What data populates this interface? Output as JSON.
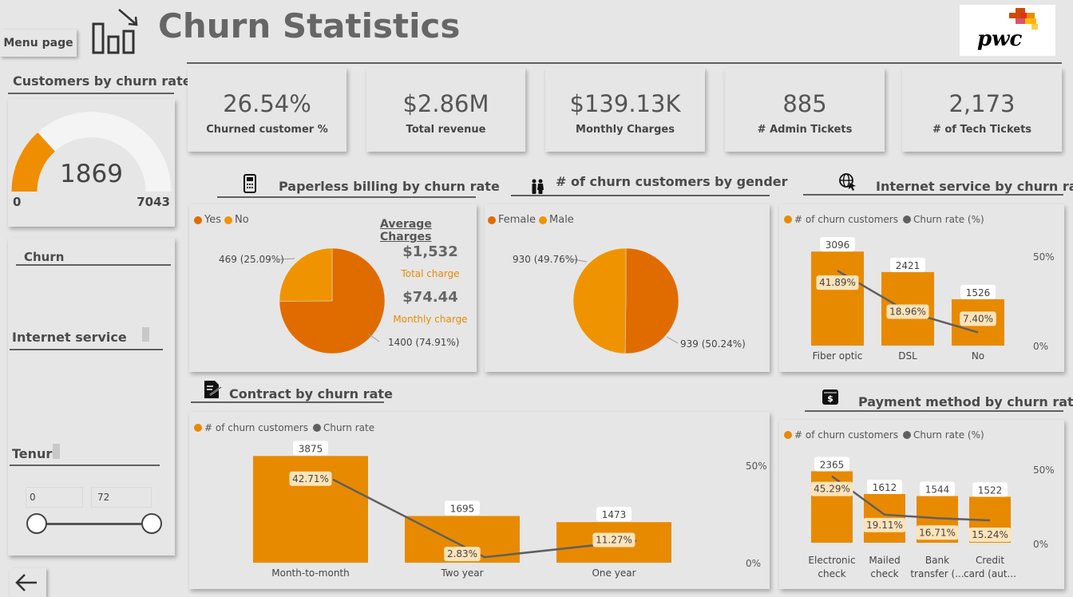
{
  "header": {
    "title": "Churn Statistics",
    "menu_button": "Menu page",
    "logo_text": "pwc"
  },
  "colors": {
    "orange": "#e88a00",
    "dark_orange": "#e06c00",
    "light_orange": "#ef9400",
    "line": "#5f5f5f"
  },
  "gauge": {
    "title": "Customers by churn rate",
    "value": "1869",
    "min": "0",
    "max": "7043",
    "fraction": 0.2654
  },
  "kpis": [
    {
      "value": "26.54%",
      "label": "Churned customer %"
    },
    {
      "value": "$2.86M",
      "label": "Total revenue"
    },
    {
      "value": "$139.13K",
      "label": "Monthly Charges"
    },
    {
      "value": "885",
      "label": "# Admin Tickets"
    },
    {
      "value": "2,173",
      "label": "#  of Tech Tickets"
    }
  ],
  "slicers": {
    "churn_label": "Churn",
    "internet_label": "Internet service",
    "tenure_label": "Tenur",
    "tenure_min": "0",
    "tenure_max": "72"
  },
  "paperless": {
    "title": "Paperless billing by churn rate",
    "legend": [
      "Yes",
      "No"
    ],
    "label_no": "469 (25.09%)",
    "label_yes": "1400 (74.91%)",
    "avg_title": "Average Charges",
    "total_value": "$1,532",
    "total_label": "Total charge",
    "monthly_value": "$74.44",
    "monthly_label": "Monthly charge"
  },
  "gender": {
    "title": "# of churn customers by gender",
    "legend": [
      "Female",
      "Male"
    ],
    "label_male": "930 (49.76%)",
    "label_female": "939 (50.24%)"
  },
  "internet_chart": {
    "title": "Internet service by churn rate",
    "legend": [
      "# of churn customers",
      "Churn rate (%)"
    ],
    "axis": [
      "50%",
      "0%"
    ]
  },
  "contract_chart": {
    "title": "Contract by churn rate",
    "legend": [
      "# of churn customers",
      "Churn rate"
    ],
    "axis": [
      "50%",
      "0%"
    ]
  },
  "payment_chart": {
    "title": "Payment method by churn rate",
    "legend": [
      "# of churn customers",
      "Churn rate (%)"
    ],
    "axis": [
      "50%",
      "0%"
    ]
  },
  "chart_data": [
    {
      "type": "pie",
      "title": "Paperless billing by churn rate",
      "categories": [
        "Yes",
        "No"
      ],
      "values": [
        1400,
        469
      ],
      "labels": [
        "1400 (74.91%)",
        "469 (25.09%)"
      ]
    },
    {
      "type": "pie",
      "title": "# of churn customers by gender",
      "categories": [
        "Female",
        "Male"
      ],
      "values": [
        939,
        930
      ],
      "labels": [
        "939 (50.24%)",
        "930 (49.76%)"
      ]
    },
    {
      "type": "bar",
      "title": "Internet service by churn rate",
      "categories": [
        "Fiber optic",
        "DSL",
        "No"
      ],
      "series": [
        {
          "name": "# of churn customers",
          "values": [
            3096,
            2421,
            1526
          ]
        },
        {
          "name": "Churn rate (%)",
          "values": [
            41.89,
            18.96,
            7.4
          ],
          "type": "line"
        }
      ],
      "bar_labels": [
        "3096",
        "2421",
        "1526"
      ],
      "rate_labels": [
        "41.89%",
        "18.96%",
        "7.40%"
      ],
      "ylim": [
        0,
        3600
      ],
      "rate_ylim": [
        0,
        50
      ]
    },
    {
      "type": "bar",
      "title": "Contract by churn rate",
      "categories": [
        "Month-to-month",
        "Two year",
        "One year"
      ],
      "series": [
        {
          "name": "# of churn customers",
          "values": [
            3875,
            1695,
            1473
          ]
        },
        {
          "name": "Churn rate",
          "values": [
            42.71,
            2.83,
            11.27
          ],
          "type": "line"
        }
      ],
      "bar_labels": [
        "3875",
        "1695",
        "1473"
      ],
      "rate_labels": [
        "42.71%",
        "2.83%",
        "11.27%"
      ],
      "ylim": [
        0,
        4000
      ],
      "rate_ylim": [
        0,
        50
      ]
    },
    {
      "type": "bar",
      "title": "Payment method by churn rate",
      "categories": [
        "Electronic check",
        "Mailed check",
        "Bank transfer (...",
        "Credit card (aut..."
      ],
      "series": [
        {
          "name": "# of churn customers",
          "values": [
            2365,
            1612,
            1544,
            1522
          ]
        },
        {
          "name": "Churn rate (%)",
          "values": [
            45.29,
            19.11,
            16.71,
            15.24
          ],
          "type": "line"
        }
      ],
      "bar_labels": [
        "2365",
        "1612",
        "1544",
        "1522"
      ],
      "rate_labels": [
        "45.29%",
        "19.11%",
        "16.71%",
        "15.24%"
      ],
      "ylim": [
        0,
        2800
      ],
      "rate_ylim": [
        0,
        50
      ]
    }
  ]
}
